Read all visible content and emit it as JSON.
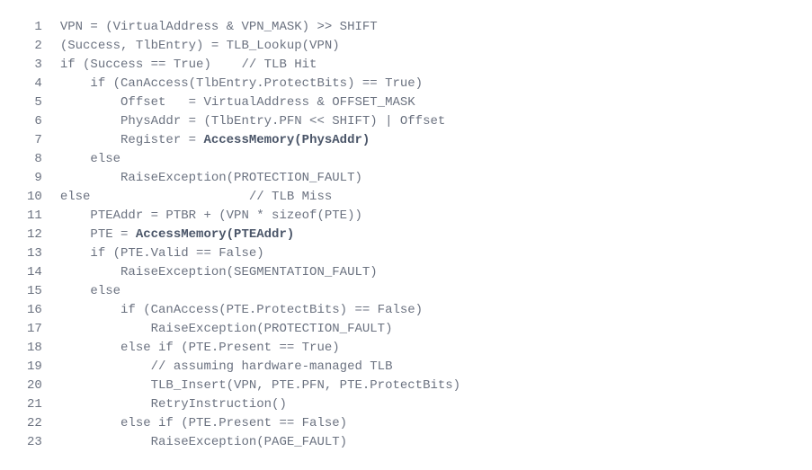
{
  "code": {
    "font_family": "Courier New",
    "font_size": 14,
    "text_color": "#6b7280",
    "bold_color": "#4a5568",
    "background_color": "#ffffff",
    "lines": [
      {
        "num": "1",
        "indent": 0,
        "text": "VPN = (VirtualAddress & VPN_MASK) >> SHIFT"
      },
      {
        "num": "2",
        "indent": 0,
        "text": "(Success, TlbEntry) = TLB_Lookup(VPN)"
      },
      {
        "num": "3",
        "indent": 0,
        "text": "if (Success == True)    // TLB Hit"
      },
      {
        "num": "4",
        "indent": 1,
        "text": "if (CanAccess(TlbEntry.ProtectBits) == True)"
      },
      {
        "num": "5",
        "indent": 2,
        "text": "Offset   = VirtualAddress & OFFSET_MASK"
      },
      {
        "num": "6",
        "indent": 2,
        "text": "PhysAddr = (TlbEntry.PFN << SHIFT) | Offset"
      },
      {
        "num": "7",
        "indent": 2,
        "text": "Register = ",
        "bold": "AccessMemory(PhysAddr)"
      },
      {
        "num": "8",
        "indent": 1,
        "text": "else"
      },
      {
        "num": "9",
        "indent": 2,
        "text": "RaiseException(PROTECTION_FAULT)"
      },
      {
        "num": "10",
        "indent": 0,
        "text": "else                     // TLB Miss"
      },
      {
        "num": "11",
        "indent": 1,
        "text": "PTEAddr = PTBR + (VPN * sizeof(PTE))"
      },
      {
        "num": "12",
        "indent": 1,
        "text": "PTE = ",
        "bold": "AccessMemory(PTEAddr)"
      },
      {
        "num": "13",
        "indent": 1,
        "text": "if (PTE.Valid == False)"
      },
      {
        "num": "14",
        "indent": 2,
        "text": "RaiseException(SEGMENTATION_FAULT)"
      },
      {
        "num": "15",
        "indent": 1,
        "text": "else"
      },
      {
        "num": "16",
        "indent": 2,
        "text": "if (CanAccess(PTE.ProtectBits) == False)"
      },
      {
        "num": "17",
        "indent": 3,
        "text": "RaiseException(PROTECTION_FAULT)"
      },
      {
        "num": "18",
        "indent": 2,
        "text": "else if (PTE.Present == True)"
      },
      {
        "num": "19",
        "indent": 3,
        "text": "// assuming hardware-managed TLB"
      },
      {
        "num": "20",
        "indent": 3,
        "text": "TLB_Insert(VPN, PTE.PFN, PTE.ProtectBits)"
      },
      {
        "num": "21",
        "indent": 3,
        "text": "RetryInstruction()"
      },
      {
        "num": "22",
        "indent": 2,
        "text": "else if (PTE.Present == False)"
      },
      {
        "num": "23",
        "indent": 3,
        "text": "RaiseException(PAGE_FAULT)"
      }
    ],
    "indent_unit": "    "
  }
}
